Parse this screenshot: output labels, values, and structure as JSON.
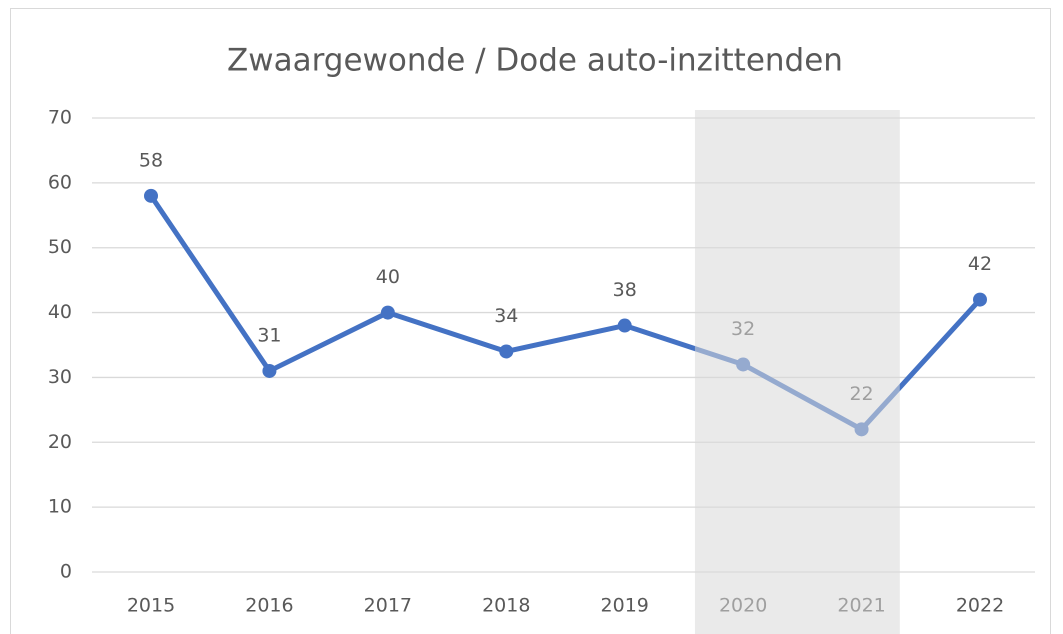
{
  "chart_data": {
    "type": "line",
    "title": "Zwaargewonde / Dode auto-inzittenden",
    "categories": [
      "2015",
      "2016",
      "2017",
      "2018",
      "2019",
      "2020",
      "2021",
      "2022"
    ],
    "series": [
      {
        "name": "Zwaargewonde / Dode auto-inzittenden",
        "color": "#4472c4",
        "values": [
          58,
          31,
          40,
          34,
          38,
          32,
          22,
          42
        ]
      }
    ],
    "ylim": [
      0,
      70
    ],
    "yticks": [
      0,
      10,
      20,
      30,
      40,
      50,
      60,
      70
    ],
    "grid": true,
    "highlight": [
      "2020",
      "2021"
    ],
    "highlight_color": "#d9d9d9"
  }
}
